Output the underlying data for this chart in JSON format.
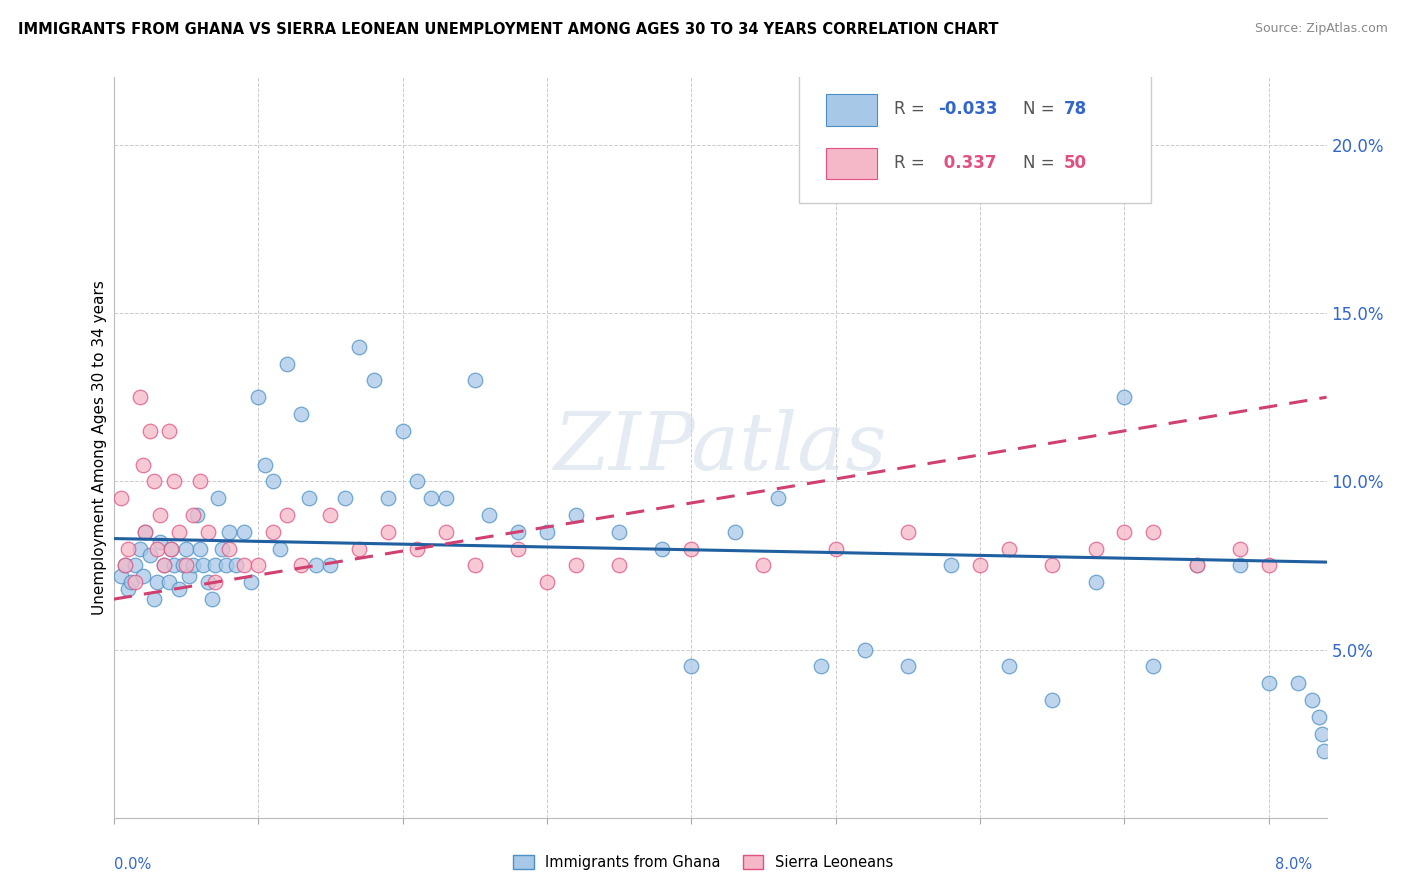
{
  "title": "IMMIGRANTS FROM GHANA VS SIERRA LEONEAN UNEMPLOYMENT AMONG AGES 30 TO 34 YEARS CORRELATION CHART",
  "source": "Source: ZipAtlas.com",
  "ylabel": "Unemployment Among Ages 30 to 34 years",
  "xlim": [
    0.0,
    8.4
  ],
  "ylim": [
    0.0,
    22.0
  ],
  "yticks": [
    5.0,
    10.0,
    15.0,
    20.0
  ],
  "ytick_labels": [
    "5.0%",
    "10.0%",
    "15.0%",
    "20.0%"
  ],
  "blue_color": "#a8c8e8",
  "pink_color": "#f4b8c8",
  "blue_edge_color": "#4a90c4",
  "pink_edge_color": "#e05080",
  "blue_line_color": "#2060a0",
  "pink_line_color": "#d04070",
  "blue_scatter_x": [
    0.05,
    0.08,
    0.1,
    0.12,
    0.15,
    0.18,
    0.2,
    0.22,
    0.25,
    0.28,
    0.3,
    0.32,
    0.35,
    0.38,
    0.4,
    0.42,
    0.45,
    0.48,
    0.5,
    0.52,
    0.55,
    0.58,
    0.6,
    0.62,
    0.65,
    0.68,
    0.7,
    0.72,
    0.75,
    0.78,
    0.8,
    0.85,
    0.9,
    0.95,
    1.0,
    1.05,
    1.1,
    1.15,
    1.2,
    1.3,
    1.35,
    1.4,
    1.5,
    1.6,
    1.7,
    1.8,
    1.9,
    2.0,
    2.1,
    2.2,
    2.3,
    2.5,
    2.6,
    2.8,
    3.0,
    3.2,
    3.5,
    3.8,
    4.0,
    4.3,
    4.6,
    4.9,
    5.2,
    5.5,
    5.8,
    6.2,
    6.5,
    6.8,
    7.0,
    7.2,
    7.5,
    7.8,
    8.0,
    8.2,
    8.3,
    8.35,
    8.37,
    8.38
  ],
  "blue_scatter_y": [
    7.2,
    7.5,
    6.8,
    7.0,
    7.5,
    8.0,
    7.2,
    8.5,
    7.8,
    6.5,
    7.0,
    8.2,
    7.5,
    7.0,
    8.0,
    7.5,
    6.8,
    7.5,
    8.0,
    7.2,
    7.5,
    9.0,
    8.0,
    7.5,
    7.0,
    6.5,
    7.5,
    9.5,
    8.0,
    7.5,
    8.5,
    7.5,
    8.5,
    7.0,
    12.5,
    10.5,
    10.0,
    8.0,
    13.5,
    12.0,
    9.5,
    7.5,
    7.5,
    9.5,
    14.0,
    13.0,
    9.5,
    11.5,
    10.0,
    9.5,
    9.5,
    13.0,
    9.0,
    8.5,
    8.5,
    9.0,
    8.5,
    8.0,
    4.5,
    8.5,
    9.5,
    4.5,
    5.0,
    4.5,
    7.5,
    4.5,
    3.5,
    7.0,
    12.5,
    4.5,
    7.5,
    7.5,
    4.0,
    4.0,
    3.5,
    3.0,
    2.5,
    2.0
  ],
  "pink_scatter_x": [
    0.05,
    0.08,
    0.1,
    0.15,
    0.18,
    0.2,
    0.22,
    0.25,
    0.28,
    0.3,
    0.32,
    0.35,
    0.38,
    0.4,
    0.42,
    0.45,
    0.5,
    0.55,
    0.6,
    0.65,
    0.7,
    0.8,
    0.9,
    1.0,
    1.1,
    1.2,
    1.3,
    1.5,
    1.7,
    1.9,
    2.1,
    2.3,
    2.5,
    2.8,
    3.0,
    3.2,
    3.5,
    4.0,
    4.5,
    5.0,
    5.5,
    6.0,
    6.2,
    6.5,
    6.8,
    7.0,
    7.2,
    7.5,
    7.8,
    8.0
  ],
  "pink_scatter_y": [
    9.5,
    7.5,
    8.0,
    7.0,
    12.5,
    10.5,
    8.5,
    11.5,
    10.0,
    8.0,
    9.0,
    7.5,
    11.5,
    8.0,
    10.0,
    8.5,
    7.5,
    9.0,
    10.0,
    8.5,
    7.0,
    8.0,
    7.5,
    7.5,
    8.5,
    9.0,
    7.5,
    9.0,
    8.0,
    8.5,
    8.0,
    8.5,
    7.5,
    8.0,
    7.0,
    7.5,
    7.5,
    8.0,
    7.5,
    8.0,
    8.5,
    7.5,
    8.0,
    7.5,
    8.0,
    8.5,
    8.5,
    7.5,
    8.0,
    7.5
  ],
  "blue_trend_x": [
    0.0,
    8.4
  ],
  "blue_trend_y": [
    8.3,
    7.6
  ],
  "pink_trend_x": [
    0.0,
    8.4
  ],
  "pink_trend_y": [
    6.5,
    12.5
  ],
  "watermark_text": "ZIPatlas",
  "legend_items": [
    {
      "r_text": "R = ",
      "r_val": "-0.033",
      "n_text": "N = ",
      "n_val": "78"
    },
    {
      "r_text": "R = ",
      "r_val": " 0.337",
      "n_text": "N = ",
      "n_val": "50"
    }
  ],
  "background_color": "#ffffff",
  "grid_color": "#cccccc",
  "axis_label_color": "#3366cc"
}
